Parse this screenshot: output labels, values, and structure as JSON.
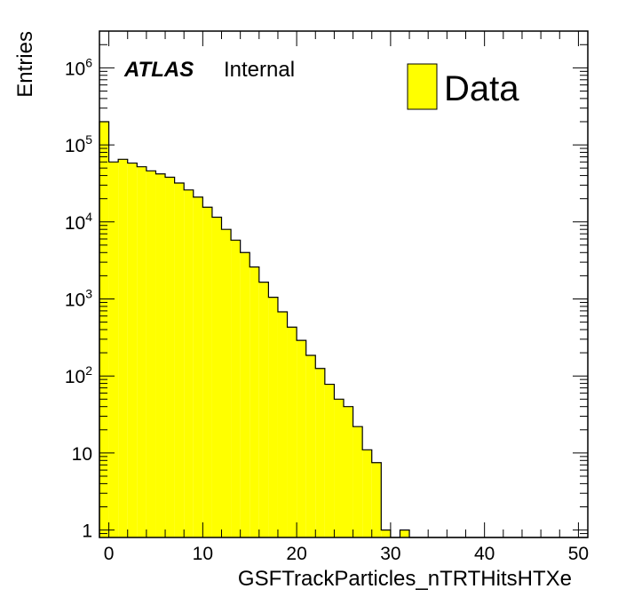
{
  "chart_data": {
    "type": "bar",
    "xlabel": "GSFTrackParticles_nTRTHitsHTXe",
    "ylabel": "Entries",
    "xlim": [
      -1,
      51
    ],
    "ylim": [
      0.8,
      3000000
    ],
    "log_y": true,
    "bin_width": 1,
    "x_ticks": [
      0,
      10,
      20,
      30,
      40,
      50
    ],
    "y_ticks": [
      {
        "value": 1,
        "base": "1",
        "exp": ""
      },
      {
        "value": 10,
        "base": "10",
        "exp": ""
      },
      {
        "value": 100,
        "base": "10",
        "exp": "2"
      },
      {
        "value": 1000,
        "base": "10",
        "exp": "3"
      },
      {
        "value": 10000,
        "base": "10",
        "exp": "4"
      },
      {
        "value": 100000,
        "base": "10",
        "exp": "5"
      },
      {
        "value": 1000000,
        "base": "10",
        "exp": "6"
      }
    ],
    "series": [
      {
        "name": "Data",
        "color": "#ffff00",
        "bin_lefts": [
          -1,
          0,
          1,
          2,
          3,
          4,
          5,
          6,
          7,
          8,
          9,
          10,
          11,
          12,
          13,
          14,
          15,
          16,
          17,
          18,
          19,
          20,
          21,
          22,
          23,
          24,
          25,
          26,
          27,
          28,
          29,
          30,
          31,
          32,
          33,
          34,
          35,
          36,
          37,
          38,
          39,
          40,
          41,
          42,
          43,
          44,
          45,
          46,
          47,
          48,
          49,
          50
        ],
        "values": [
          200000,
          60000,
          65000,
          58000,
          52000,
          46000,
          42000,
          38000,
          32000,
          26000,
          21000,
          15500,
          11500,
          8000,
          5800,
          4000,
          2600,
          1650,
          1050,
          680,
          430,
          290,
          185,
          125,
          78,
          50,
          40,
          22,
          11,
          7.5,
          1,
          0,
          1,
          0.6,
          0.6,
          0,
          0.6,
          0,
          0,
          0,
          0,
          0,
          0,
          0,
          0,
          0,
          0,
          0,
          0,
          0,
          0,
          0
        ]
      }
    ],
    "annotations": {
      "atlas": "ATLAS",
      "status": "Internal"
    },
    "legend": {
      "position": "top-right",
      "entries": [
        "Data"
      ]
    }
  }
}
